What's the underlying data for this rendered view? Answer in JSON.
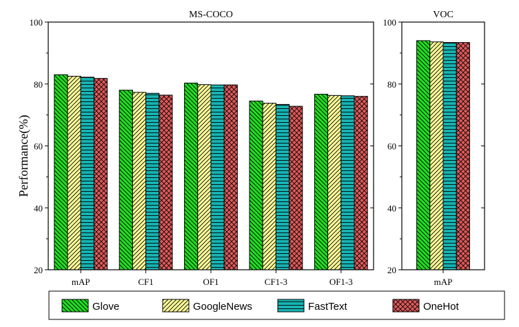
{
  "chart_data": [
    {
      "type": "bar",
      "title": "MS-COCO",
      "ylabel": "Performance(%)",
      "xlabel": "",
      "ylim": [
        20,
        100
      ],
      "yticks": [
        20,
        40,
        60,
        80,
        100
      ],
      "categories": [
        "mAP",
        "CF1",
        "OF1",
        "CF1-3",
        "OF1-3"
      ],
      "series": [
        {
          "name": "Glove",
          "values": [
            83.0,
            78.0,
            80.3,
            74.5,
            76.7
          ]
        },
        {
          "name": "GoogleNews",
          "values": [
            82.5,
            77.3,
            79.8,
            73.8,
            76.3
          ]
        },
        {
          "name": "FastText",
          "values": [
            82.2,
            77.0,
            79.7,
            73.4,
            76.2
          ]
        },
        {
          "name": "OneHot",
          "values": [
            81.8,
            76.4,
            79.7,
            72.8,
            76.0
          ]
        }
      ]
    },
    {
      "type": "bar",
      "title": "VOC",
      "ylabel": "",
      "xlabel": "",
      "ylim": [
        20,
        100
      ],
      "yticks": [
        20,
        40,
        60,
        80,
        100
      ],
      "categories": [
        "mAP"
      ],
      "series": [
        {
          "name": "Glove",
          "values": [
            94.0
          ]
        },
        {
          "name": "GoogleNews",
          "values": [
            93.6
          ]
        },
        {
          "name": "FastText",
          "values": [
            93.4
          ]
        },
        {
          "name": "OneHot",
          "values": [
            93.4
          ]
        }
      ]
    }
  ],
  "legend": {
    "placement": "bottom",
    "items": [
      {
        "label": "Glove",
        "color": "#22dd22",
        "pattern": "backslash"
      },
      {
        "label": "GoogleNews",
        "color": "#ffff99",
        "pattern": "slash"
      },
      {
        "label": "FastText",
        "color": "#17b3b3",
        "pattern": "horizontal"
      },
      {
        "label": "OneHot",
        "color": "#e05a5a",
        "pattern": "crosshatch"
      }
    ]
  }
}
